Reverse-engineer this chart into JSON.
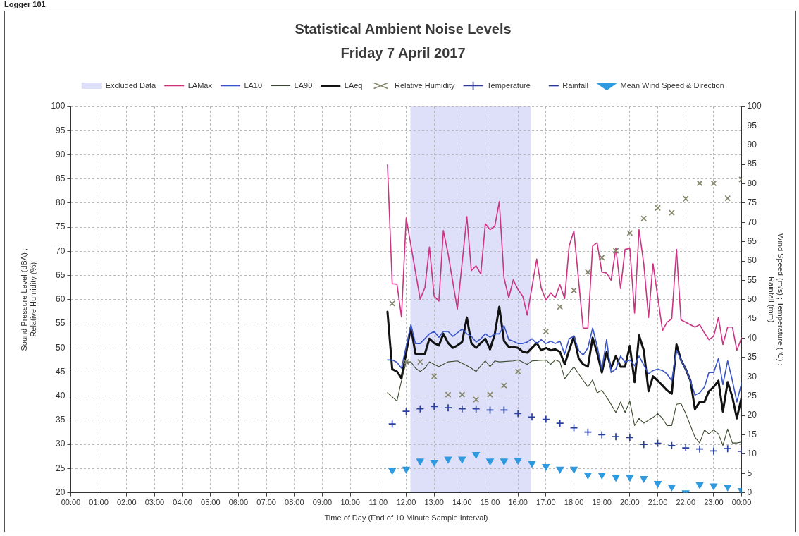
{
  "chart_data": {
    "type": "line",
    "title": "Statistical Ambient Noise Levels",
    "subtitle": "Friday 7 April 2017",
    "xlabel": "Time of Day (End of 10 Minute Sample Interval)",
    "ylabel": "Sound Pressure Level (dBA) ;\nRelative Humidity (%)",
    "y2label": "Wind Speed (m/s) ; Temperature (°C) ;\nRainfall (mm)",
    "annotations": [
      "Logger 101"
    ],
    "xlim": [
      0,
      24
    ],
    "xticks": [
      {
        "value": 0,
        "label": "00:00"
      },
      {
        "value": 1,
        "label": "01:00"
      },
      {
        "value": 2,
        "label": "02:00"
      },
      {
        "value": 3,
        "label": "03:00"
      },
      {
        "value": 4,
        "label": "04:00"
      },
      {
        "value": 5,
        "label": "05:00"
      },
      {
        "value": 6,
        "label": "06:00"
      },
      {
        "value": 7,
        "label": "07:00"
      },
      {
        "value": 8,
        "label": "08:00"
      },
      {
        "value": 9,
        "label": "09:00"
      },
      {
        "value": 10,
        "label": "10:00"
      },
      {
        "value": 11,
        "label": "11:00"
      },
      {
        "value": 12,
        "label": "12:00"
      },
      {
        "value": 13,
        "label": "13:00"
      },
      {
        "value": 14,
        "label": "14:00"
      },
      {
        "value": 15,
        "label": "15:00"
      },
      {
        "value": 16,
        "label": "16:00"
      },
      {
        "value": 17,
        "label": "17:00"
      },
      {
        "value": 18,
        "label": "18:00"
      },
      {
        "value": 19,
        "label": "19:00"
      },
      {
        "value": 20,
        "label": "20:00"
      },
      {
        "value": 21,
        "label": "21:00"
      },
      {
        "value": 22,
        "label": "22:00"
      },
      {
        "value": 23,
        "label": "23:00"
      },
      {
        "value": 24,
        "label": "00:00"
      }
    ],
    "ylim": [
      20,
      100
    ],
    "yticks": [
      20,
      25,
      30,
      35,
      40,
      45,
      50,
      55,
      60,
      65,
      70,
      75,
      80,
      85,
      90,
      95,
      100
    ],
    "y2lim": [
      0,
      100
    ],
    "y2ticks": [
      0,
      5,
      10,
      15,
      20,
      25,
      30,
      35,
      40,
      45,
      50,
      55,
      60,
      65,
      70,
      75,
      80,
      85,
      90,
      95,
      100
    ],
    "grid": true,
    "legend": "top",
    "bands": [
      {
        "axis": "x",
        "from": 12.15,
        "to": 16.45,
        "label": "Excluded Data",
        "color": "#dde0f8"
      }
    ],
    "series": [
      {
        "name": "LAMax",
        "color": "#cc3383",
        "marker": "none",
        "x": [
          11.33,
          11.5,
          11.67,
          11.83,
          12,
          12.5,
          12.67,
          12.83,
          13,
          13.17,
          13.33,
          13.5,
          13.83,
          14.17,
          14.33,
          14.5,
          14.67,
          14.83,
          15,
          15.17,
          15.33,
          15.5,
          15.67,
          15.83,
          16,
          16.17,
          16.33,
          16.67,
          16.83,
          17,
          17.17,
          17.33,
          17.5,
          17.67,
          17.83,
          18,
          18.33,
          18.5,
          18.67,
          18.83,
          19,
          19.17,
          19.33,
          19.5,
          19.67,
          19.83,
          20,
          20.17,
          20.33,
          20.5,
          20.67,
          20.83,
          21.17,
          21.33,
          21.5,
          21.67,
          21.83,
          22,
          22.33,
          22.5,
          22.67,
          22.83,
          23,
          23.17,
          23.33,
          23.5,
          23.67,
          23.83,
          24
        ],
        "values": [
          87.9,
          63.3,
          63.2,
          56.4,
          76.9,
          60.1,
          62.5,
          70.9,
          60.7,
          59.7,
          74.3,
          69.4,
          58.0,
          77.2,
          66.0,
          67.0,
          65.3,
          75.7,
          74.5,
          75.2,
          80.3,
          64.5,
          60.4,
          64.1,
          62.1,
          60.7,
          56.8,
          68.4,
          62.4,
          59.9,
          61.4,
          60.4,
          63.1,
          60.2,
          71.1,
          74.2,
          54.1,
          54.1,
          71.1,
          71.8,
          65.7,
          65.5,
          64.0,
          70.6,
          62.3,
          70.4,
          70.6,
          57.2,
          74.5,
          67.4,
          56.3,
          67.4,
          53.6,
          55.3,
          56.0,
          70.4,
          55.8,
          55.3,
          54.3,
          54.8,
          53.1,
          51.7,
          52.4,
          56.3,
          50.7,
          54.3,
          54.3,
          49.5,
          52.1
        ]
      },
      {
        "name": "LA10",
        "color": "#3a55c6",
        "marker": "none",
        "x": [
          11.33,
          11.5,
          11.67,
          11.83,
          12.17,
          12.33,
          12.5,
          12.83,
          13,
          13.17,
          13.33,
          13.5,
          13.67,
          14,
          14.17,
          14.33,
          14.5,
          14.67,
          14.83,
          15,
          15.17,
          15.33,
          15.5,
          15.67,
          15.83,
          16,
          16.17,
          16.33,
          16.5,
          16.67,
          16.83,
          17,
          17.17,
          17.33,
          17.5,
          17.67,
          17.83,
          18,
          18.17,
          18.33,
          18.5,
          18.67,
          18.83,
          19,
          19.17,
          19.33,
          19.5,
          19.67,
          19.83,
          20,
          20.17,
          20.33,
          20.67,
          20.83,
          21,
          21.17,
          21.33,
          21.5,
          21.67,
          21.83,
          22,
          22.17,
          22.33,
          22.5,
          22.67,
          22.83,
          23,
          23.17,
          23.33,
          23.5,
          23.67,
          23.83,
          24
        ],
        "values": [
          47.5,
          47.5,
          47.0,
          45.8,
          54.8,
          50.9,
          50.9,
          52.9,
          53.4,
          52.2,
          53.4,
          53.4,
          52.4,
          53.9,
          52.9,
          52.4,
          51.2,
          51.9,
          52.9,
          52.2,
          52.9,
          52.9,
          54.6,
          51.7,
          51.4,
          50.9,
          50.9,
          51.2,
          51.9,
          50.9,
          51.7,
          50.9,
          51.4,
          50.9,
          51.4,
          48.7,
          51.9,
          52.4,
          49.5,
          48.5,
          50.0,
          54.1,
          50.4,
          45.6,
          51.7,
          44.9,
          45.6,
          48.3,
          47.0,
          47.5,
          46.3,
          48.3,
          44.6,
          45.3,
          45.6,
          45.3,
          44.6,
          43.2,
          49.5,
          47.5,
          45.6,
          43.2,
          40.2,
          40.7,
          41.9,
          44.9,
          44.9,
          47.8,
          42.4,
          47.3,
          43.2,
          38.8,
          42.7
        ]
      },
      {
        "name": "LA90",
        "color": "#3b4a2c",
        "marker": "none",
        "x": [
          11.33,
          11.67,
          11.83,
          12,
          12.17,
          12.33,
          12.5,
          12.67,
          12.83,
          13,
          13.17,
          13.33,
          13.5,
          13.83,
          14.17,
          14.33,
          14.5,
          14.67,
          14.83,
          15,
          15.17,
          15.33,
          15.83,
          16,
          16.33,
          16.5,
          17,
          17.17,
          17.33,
          17.5,
          17.67,
          18,
          18.17,
          18.5,
          18.67,
          18.83,
          19,
          19.17,
          19.33,
          19.5,
          19.67,
          19.83,
          20,
          20.17,
          20.33,
          20.5,
          20.83,
          21,
          21.17,
          21.33,
          21.5,
          21.67,
          21.83,
          22,
          22.17,
          22.33,
          22.5,
          22.67,
          22.83,
          23,
          23.17,
          23.33,
          23.5,
          23.67,
          23.83,
          24
        ],
        "values": [
          40.7,
          39.0,
          43.2,
          47.1,
          47.1,
          45.8,
          45.1,
          45.8,
          47.1,
          46.6,
          46.1,
          46.6,
          47.1,
          47.3,
          46.3,
          45.8,
          45.1,
          46.3,
          47.3,
          46.1,
          47.3,
          47.1,
          47.3,
          47.5,
          46.6,
          47.3,
          47.5,
          46.6,
          47.5,
          47.1,
          43.6,
          46.1,
          44.6,
          41.9,
          43.4,
          40.7,
          41.2,
          39.8,
          38.3,
          36.6,
          38.8,
          36.6,
          39.0,
          33.9,
          35.4,
          34.4,
          35.6,
          36.4,
          35.4,
          33.9,
          33.9,
          38.3,
          38.5,
          36.4,
          33.9,
          31.5,
          30.3,
          33.0,
          32.2,
          33.0,
          32.2,
          29.8,
          33.2,
          30.3,
          30.3,
          30.5
        ]
      },
      {
        "name": "LAeq",
        "color": "#121212",
        "marker": "none",
        "x": [
          11.33,
          11.5,
          11.67,
          11.83,
          12.17,
          12.33,
          12.5,
          12.67,
          12.83,
          13,
          13.17,
          13.33,
          13.5,
          13.67,
          13.83,
          14,
          14.17,
          14.33,
          14.5,
          14.67,
          14.83,
          15,
          15.17,
          15.33,
          15.5,
          15.67,
          15.83,
          16,
          16.17,
          16.33,
          16.67,
          16.83,
          17,
          17.17,
          17.33,
          17.5,
          17.67,
          17.83,
          18,
          18.17,
          18.33,
          18.5,
          18.67,
          18.83,
          19,
          19.17,
          19.33,
          19.5,
          19.67,
          19.83,
          20,
          20.17,
          20.33,
          20.5,
          20.67,
          20.83,
          21,
          21.17,
          21.33,
          21.5,
          21.67,
          21.83,
          22,
          22.17,
          22.33,
          22.5,
          22.67,
          22.83,
          23,
          23.17,
          23.33,
          23.5,
          23.67,
          23.83,
          24
        ],
        "values": [
          57.5,
          45.6,
          45.1,
          43.7,
          54.3,
          48.8,
          48.8,
          48.8,
          51.9,
          51.0,
          50.5,
          52.9,
          51.0,
          50.0,
          50.5,
          51.2,
          56.3,
          51.0,
          50.0,
          51.0,
          51.9,
          49.7,
          52.9,
          58.5,
          51.4,
          50.2,
          50.2,
          50.0,
          49.2,
          49.0,
          51.0,
          49.5,
          50.0,
          49.5,
          49.7,
          49.2,
          46.6,
          49.5,
          52.4,
          47.8,
          46.6,
          46.1,
          52.1,
          49.0,
          44.9,
          49.2,
          45.8,
          48.3,
          46.1,
          46.1,
          50.4,
          42.9,
          52.6,
          49.5,
          41.0,
          44.1,
          43.2,
          42.2,
          41.2,
          40.5,
          50.7,
          47.5,
          45.6,
          43.2,
          37.3,
          38.8,
          38.8,
          41.0,
          41.9,
          43.2,
          36.8,
          42.9,
          39.8,
          35.4,
          39.8
        ]
      },
      {
        "name": "Relative Humidity",
        "type": "scatter",
        "color": "#86866c",
        "marker": "x",
        "x": [
          11.5,
          12,
          12.5,
          13,
          13.5,
          14,
          14.5,
          15,
          15.5,
          16,
          17,
          17.5,
          18,
          18.5,
          19,
          19.5,
          20,
          20.5,
          21,
          21.5,
          22,
          22.5,
          23,
          23.5,
          24
        ],
        "values": [
          59.2,
          47.1,
          47.1,
          44.1,
          40.3,
          40.3,
          39.3,
          40.3,
          42.2,
          45.1,
          53.4,
          58.5,
          61.9,
          65.7,
          68.7,
          70.1,
          73.8,
          76.8,
          79.0,
          78.0,
          80.9,
          84.1,
          84.1,
          81.0,
          84.9
        ]
      },
      {
        "name": "Temperature",
        "type": "scatter",
        "axis": "y2",
        "color": "#2b3f9e",
        "marker": "cross",
        "x": [
          11.5,
          12,
          12.5,
          13,
          13.5,
          14,
          14.5,
          15,
          15.5,
          16,
          16.5,
          17,
          17.5,
          18,
          18.5,
          19,
          19.5,
          20,
          20.5,
          21,
          21.5,
          22,
          22.5,
          23,
          23.5,
          24
        ],
        "values": [
          17.8,
          21.1,
          21.7,
          22.3,
          22.0,
          21.7,
          21.7,
          21.4,
          21.4,
          20.5,
          19.6,
          19.0,
          18.0,
          16.8,
          15.7,
          15.0,
          14.5,
          14.3,
          12.5,
          12.8,
          12.2,
          11.6,
          11.3,
          10.8,
          11.4,
          10.7
        ]
      },
      {
        "name": "Rainfall",
        "type": "scatter",
        "axis": "y2",
        "color": "#1f3a93",
        "marker": "dash"
      },
      {
        "name": "Mean Wind Speed & Direction",
        "type": "scatter",
        "axis": "y2",
        "color": "#2f9ae0",
        "marker": "triangle",
        "x": [
          11.5,
          12,
          12.5,
          13,
          13.5,
          14,
          14.5,
          15,
          15.5,
          16,
          16.5,
          17,
          17.5,
          18,
          18.5,
          19,
          19.5,
          20,
          20.5,
          21,
          21.5,
          22,
          22.5,
          23,
          23.5,
          24
        ],
        "values": [
          5.8,
          6.1,
          8.2,
          7.9,
          8.7,
          8.7,
          9.9,
          8.2,
          8.2,
          8.4,
          7.6,
          6.8,
          6.1,
          6.1,
          4.6,
          4.6,
          4.0,
          4.0,
          3.7,
          2.4,
          1.5,
          0,
          2.1,
          1.8,
          1.5,
          0.6
        ]
      }
    ]
  }
}
